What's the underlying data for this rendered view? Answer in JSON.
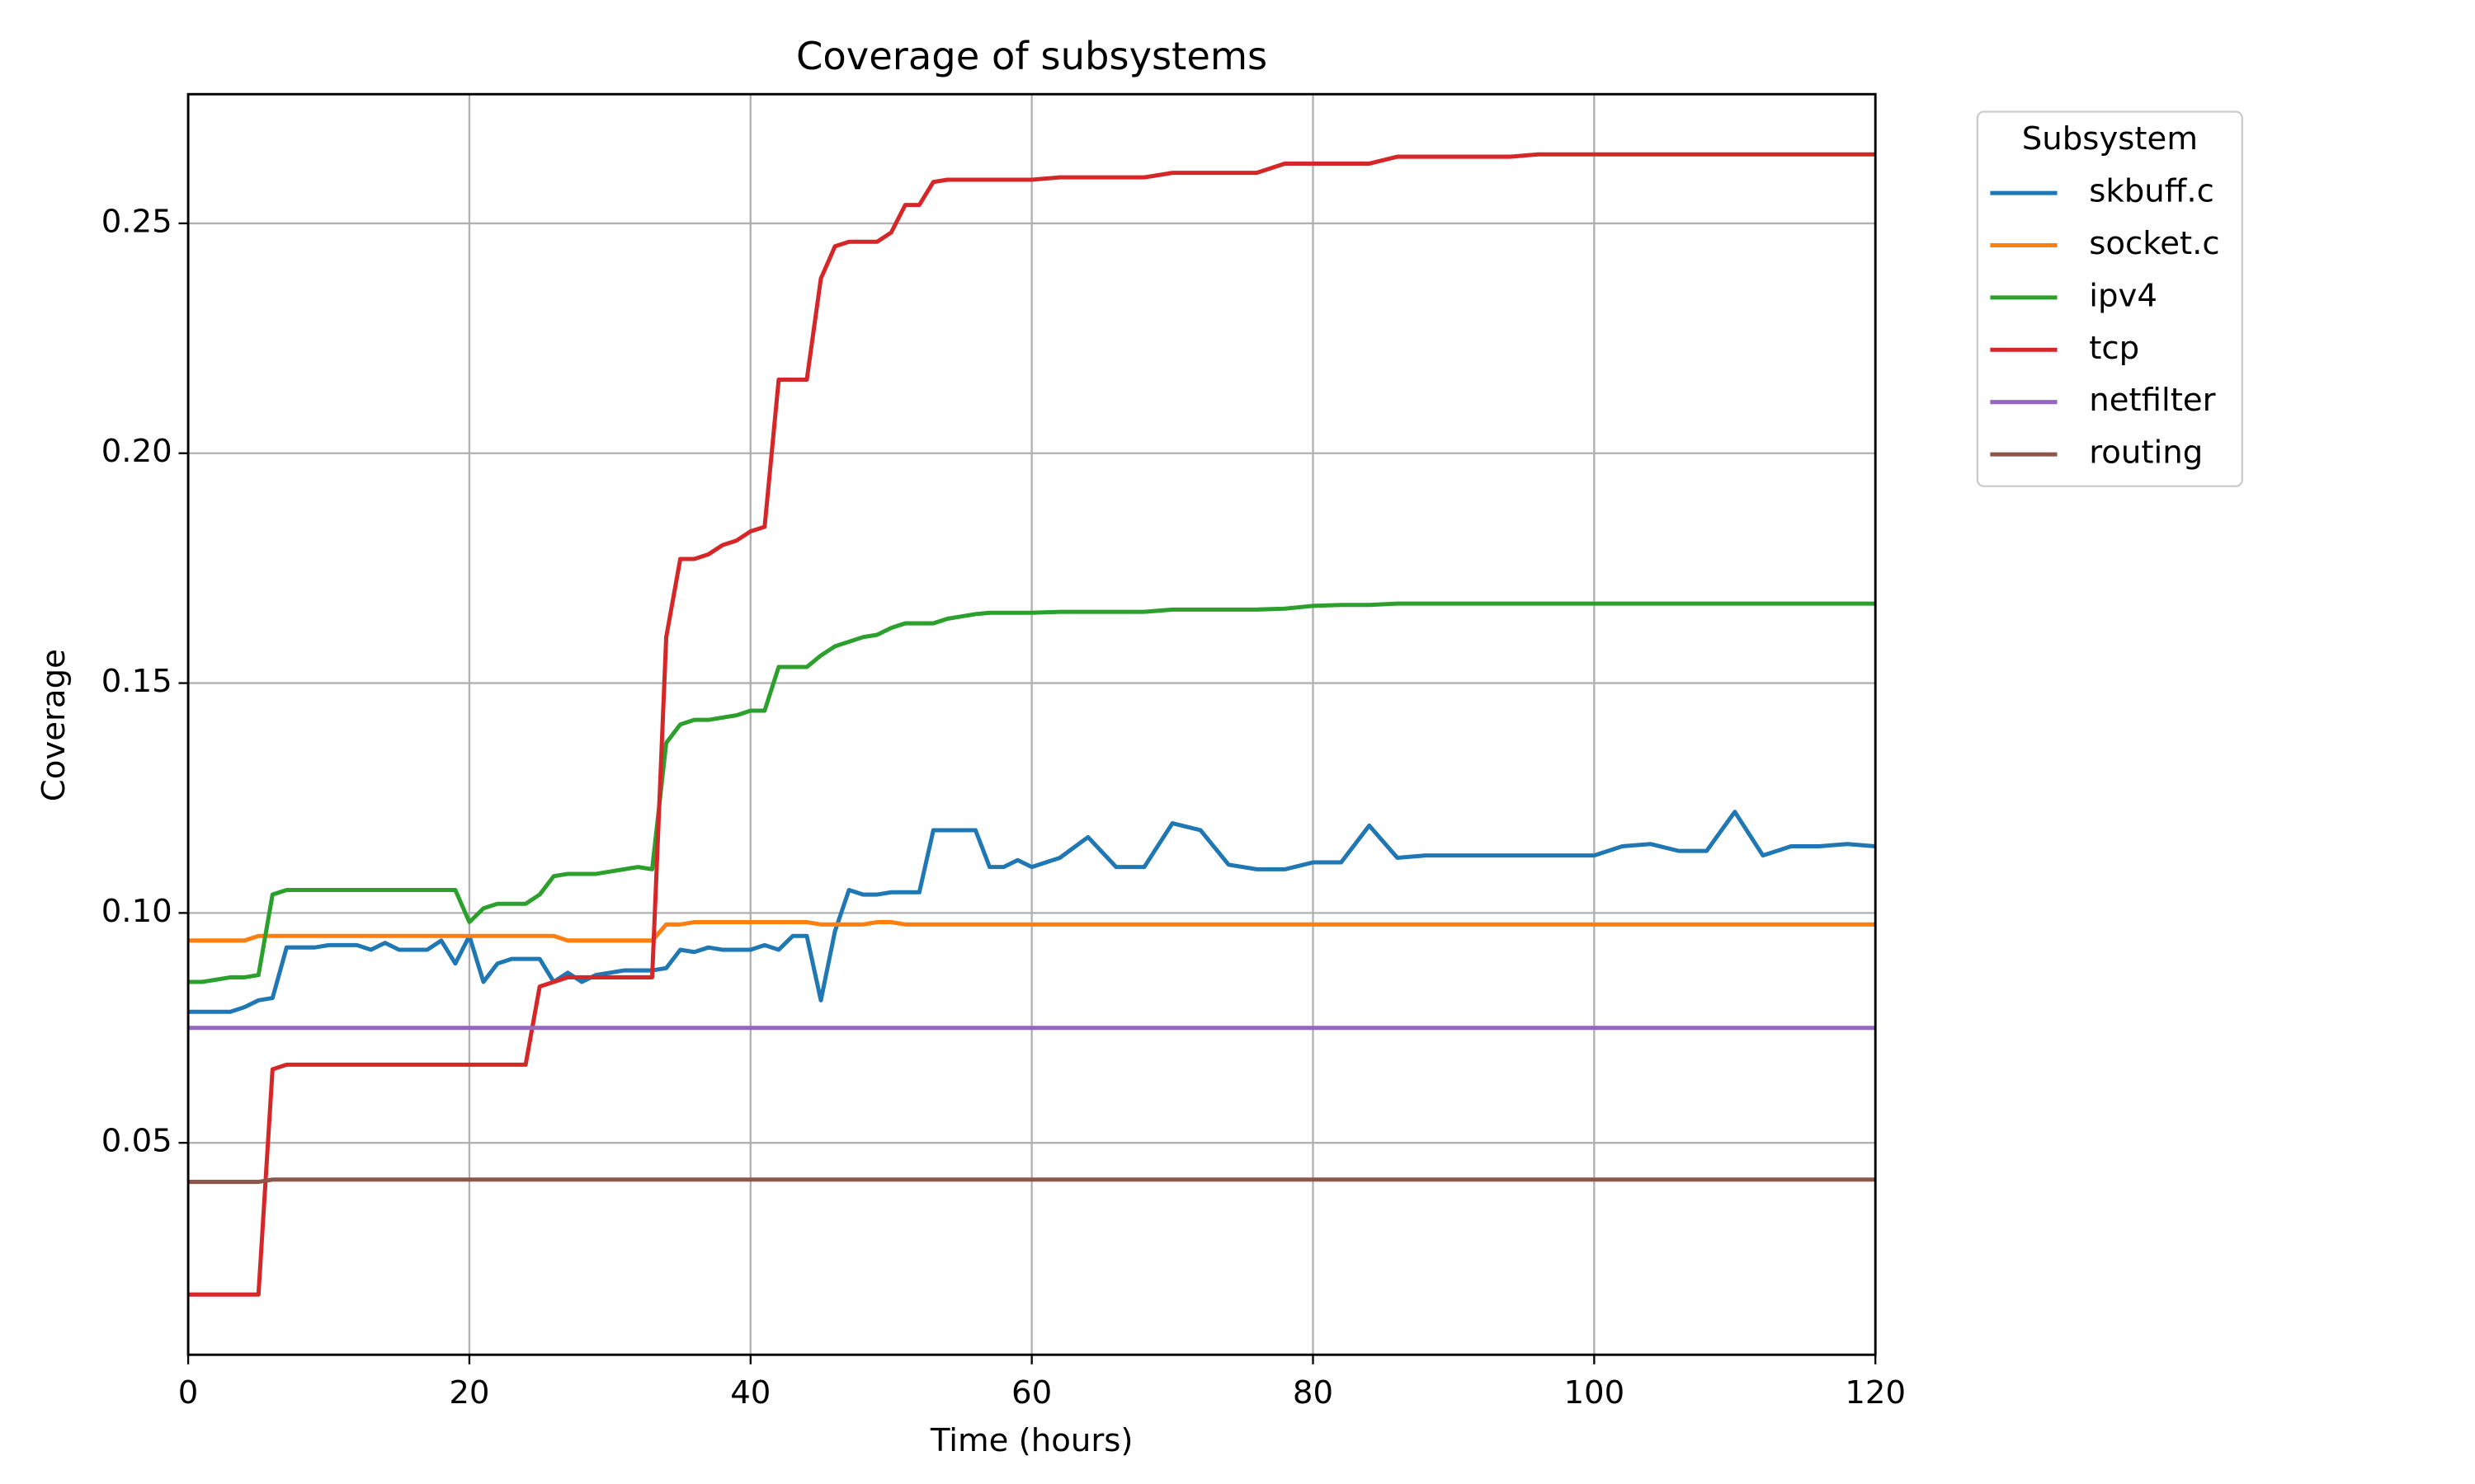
{
  "chart_data": {
    "type": "line",
    "title": "Coverage of subsystems",
    "x_label": "Time (hours)",
    "y_label": "Coverage",
    "legend_title": "Subsystem",
    "legend": "upper-right-outside",
    "grid": true,
    "xlim": [
      0,
      120
    ],
    "xticks": [
      0,
      20,
      40,
      60,
      80,
      100,
      120
    ],
    "ylim": [
      0.0039,
      0.2781
    ],
    "yticks": [
      0.05,
      {
        "value": 0.1,
        "label": "0.10"
      },
      0.15,
      {
        "value": 0.2,
        "label": "0.20"
      },
      0.25
    ],
    "x": [
      0,
      1,
      2,
      3,
      4,
      5,
      6,
      7,
      8,
      9,
      10,
      11,
      12,
      13,
      14,
      15,
      16,
      17,
      18,
      19,
      20,
      21,
      22,
      23,
      24,
      25,
      26,
      27,
      28,
      29,
      30,
      31,
      32,
      33,
      34,
      35,
      36,
      37,
      38,
      39,
      40,
      41,
      42,
      43,
      44,
      45,
      46,
      47,
      48,
      49,
      50,
      51,
      52,
      53,
      54,
      55,
      56,
      57,
      58,
      59,
      60,
      62,
      64,
      66,
      68,
      70,
      72,
      74,
      76,
      78,
      80,
      82,
      84,
      86,
      88,
      90,
      92,
      94,
      96,
      98,
      100,
      102,
      104,
      106,
      108,
      110,
      112,
      114,
      116,
      118,
      120
    ],
    "series": [
      {
        "name": "skbuff.c",
        "color": "#1f77b4",
        "values": [
          0.0785,
          0.0785,
          0.0785,
          0.0785,
          0.0795,
          0.081,
          0.0815,
          0.0925,
          0.0925,
          0.0925,
          0.093,
          0.093,
          0.093,
          0.092,
          0.0935,
          0.092,
          0.092,
          0.092,
          0.094,
          0.089,
          0.095,
          0.085,
          0.089,
          0.09,
          0.09,
          0.09,
          0.085,
          0.087,
          0.085,
          0.0865,
          0.087,
          0.0875,
          0.0875,
          0.0875,
          0.088,
          0.092,
          0.0915,
          0.0925,
          0.092,
          0.092,
          0.092,
          0.093,
          0.092,
          0.095,
          0.095,
          0.081,
          0.096,
          0.105,
          0.104,
          0.104,
          0.1045,
          0.1045,
          0.1045,
          0.118,
          0.118,
          0.118,
          0.118,
          0.11,
          0.11,
          0.1115,
          0.11,
          0.112,
          0.1165,
          0.11,
          0.11,
          0.1195,
          0.118,
          0.1105,
          0.1095,
          0.1095,
          0.111,
          0.111,
          0.119,
          0.112,
          0.1125,
          0.1125,
          0.1125,
          0.1125,
          0.1125,
          0.1125,
          0.1125,
          0.1145,
          0.115,
          0.1135,
          0.1135,
          0.122,
          0.1125,
          0.1145,
          0.1145,
          0.115,
          0.1145
        ]
      },
      {
        "name": "socket.c",
        "color": "#ff7f0e",
        "values": [
          0.094,
          0.094,
          0.094,
          0.094,
          0.094,
          0.095,
          0.095,
          0.095,
          0.095,
          0.095,
          0.095,
          0.095,
          0.095,
          0.095,
          0.095,
          0.095,
          0.095,
          0.095,
          0.095,
          0.095,
          0.095,
          0.095,
          0.095,
          0.095,
          0.095,
          0.095,
          0.095,
          0.094,
          0.094,
          0.094,
          0.094,
          0.094,
          0.094,
          0.094,
          0.0975,
          0.0975,
          0.098,
          0.098,
          0.098,
          0.098,
          0.098,
          0.098,
          0.098,
          0.098,
          0.098,
          0.0975,
          0.0975,
          0.0975,
          0.0975,
          0.098,
          0.098,
          0.0975,
          0.0975,
          0.0975,
          0.0975,
          0.0975,
          0.0975,
          0.0975,
          0.0975,
          0.0975,
          0.0975,
          0.0975,
          0.0975,
          0.0975,
          0.0975,
          0.0975,
          0.0975,
          0.0975,
          0.0975,
          0.0975,
          0.0975,
          0.0975,
          0.0975,
          0.0975,
          0.0975,
          0.0975,
          0.0975,
          0.0975,
          0.0975,
          0.0975,
          0.0975,
          0.0975,
          0.0975,
          0.0975,
          0.0975,
          0.0975,
          0.0975,
          0.0975,
          0.0975,
          0.0975,
          0.0975
        ]
      },
      {
        "name": "ipv4",
        "color": "#2ca02c",
        "values": [
          0.085,
          0.085,
          0.0855,
          0.086,
          0.086,
          0.0865,
          0.104,
          0.105,
          0.105,
          0.105,
          0.105,
          0.105,
          0.105,
          0.105,
          0.105,
          0.105,
          0.105,
          0.105,
          0.105,
          0.105,
          0.098,
          0.101,
          0.102,
          0.102,
          0.102,
          0.104,
          0.108,
          0.1085,
          0.1085,
          0.1085,
          0.109,
          0.1095,
          0.11,
          0.1095,
          0.137,
          0.141,
          0.142,
          0.142,
          0.1425,
          0.143,
          0.144,
          0.144,
          0.1535,
          0.1535,
          0.1535,
          0.156,
          0.158,
          0.159,
          0.16,
          0.1605,
          0.162,
          0.163,
          0.163,
          0.163,
          0.164,
          0.1645,
          0.165,
          0.1653,
          0.1653,
          0.1653,
          0.1653,
          0.1655,
          0.1655,
          0.1655,
          0.1655,
          0.166,
          0.166,
          0.166,
          0.166,
          0.1662,
          0.1668,
          0.167,
          0.167,
          0.1673,
          0.1673,
          0.1673,
          0.1673,
          0.1673,
          0.1673,
          0.1673,
          0.1673,
          0.1673,
          0.1673,
          0.1673,
          0.1673,
          0.1673,
          0.1673,
          0.1673,
          0.1673,
          0.1673,
          0.1673
        ]
      },
      {
        "name": "tcp",
        "color": "#d62728",
        "values": [
          0.017,
          0.017,
          0.017,
          0.017,
          0.017,
          0.017,
          0.066,
          0.067,
          0.067,
          0.067,
          0.067,
          0.067,
          0.067,
          0.067,
          0.067,
          0.067,
          0.067,
          0.067,
          0.067,
          0.067,
          0.067,
          0.067,
          0.067,
          0.067,
          0.067,
          0.084,
          0.085,
          0.086,
          0.086,
          0.086,
          0.086,
          0.086,
          0.086,
          0.086,
          0.16,
          0.177,
          0.177,
          0.178,
          0.18,
          0.181,
          0.183,
          0.184,
          0.216,
          0.216,
          0.216,
          0.238,
          0.245,
          0.246,
          0.246,
          0.246,
          0.248,
          0.254,
          0.254,
          0.259,
          0.2595,
          0.2595,
          0.2595,
          0.2595,
          0.2595,
          0.2595,
          0.2595,
          0.26,
          0.26,
          0.26,
          0.26,
          0.261,
          0.261,
          0.261,
          0.261,
          0.263,
          0.263,
          0.263,
          0.263,
          0.2645,
          0.2645,
          0.2645,
          0.2645,
          0.2645,
          0.265,
          0.265,
          0.265,
          0.265,
          0.265,
          0.265,
          0.265,
          0.265,
          0.265,
          0.265,
          0.265,
          0.265,
          0.265
        ]
      },
      {
        "name": "netfilter",
        "color": "#9467bd",
        "values": [
          0.075,
          0.075,
          0.075,
          0.075,
          0.075,
          0.075,
          0.075,
          0.075,
          0.075,
          0.075,
          0.075,
          0.075,
          0.075,
          0.075,
          0.075,
          0.075,
          0.075,
          0.075,
          0.075,
          0.075,
          0.075,
          0.075,
          0.075,
          0.075,
          0.075,
          0.075,
          0.075,
          0.075,
          0.075,
          0.075,
          0.075,
          0.075,
          0.075,
          0.075,
          0.075,
          0.075,
          0.075,
          0.075,
          0.075,
          0.075,
          0.075,
          0.075,
          0.075,
          0.075,
          0.075,
          0.075,
          0.075,
          0.075,
          0.075,
          0.075,
          0.075,
          0.075,
          0.075,
          0.075,
          0.075,
          0.075,
          0.075,
          0.075,
          0.075,
          0.075,
          0.075,
          0.075,
          0.075,
          0.075,
          0.075,
          0.075,
          0.075,
          0.075,
          0.075,
          0.075,
          0.075,
          0.075,
          0.075,
          0.075,
          0.075,
          0.075,
          0.075,
          0.075,
          0.075,
          0.075,
          0.075,
          0.075,
          0.075,
          0.075,
          0.075,
          0.075,
          0.075,
          0.075,
          0.075,
          0.075,
          0.075
        ]
      },
      {
        "name": "routing",
        "color": "#8c564b",
        "values": [
          0.0415,
          0.0415,
          0.0415,
          0.0415,
          0.0415,
          0.0415,
          0.042,
          0.042,
          0.042,
          0.042,
          0.042,
          0.042,
          0.042,
          0.042,
          0.042,
          0.042,
          0.042,
          0.042,
          0.042,
          0.042,
          0.042,
          0.042,
          0.042,
          0.042,
          0.042,
          0.042,
          0.042,
          0.042,
          0.042,
          0.042,
          0.042,
          0.042,
          0.042,
          0.042,
          0.042,
          0.042,
          0.042,
          0.042,
          0.042,
          0.042,
          0.042,
          0.042,
          0.042,
          0.042,
          0.042,
          0.042,
          0.042,
          0.042,
          0.042,
          0.042,
          0.042,
          0.042,
          0.042,
          0.042,
          0.042,
          0.042,
          0.042,
          0.042,
          0.042,
          0.042,
          0.042,
          0.042,
          0.042,
          0.042,
          0.042,
          0.042,
          0.042,
          0.042,
          0.042,
          0.042,
          0.042,
          0.042,
          0.042,
          0.042,
          0.042,
          0.042,
          0.042,
          0.042,
          0.042,
          0.042,
          0.042,
          0.042,
          0.042,
          0.042,
          0.042,
          0.042,
          0.042,
          0.042,
          0.042,
          0.042,
          0.042
        ]
      }
    ]
  }
}
